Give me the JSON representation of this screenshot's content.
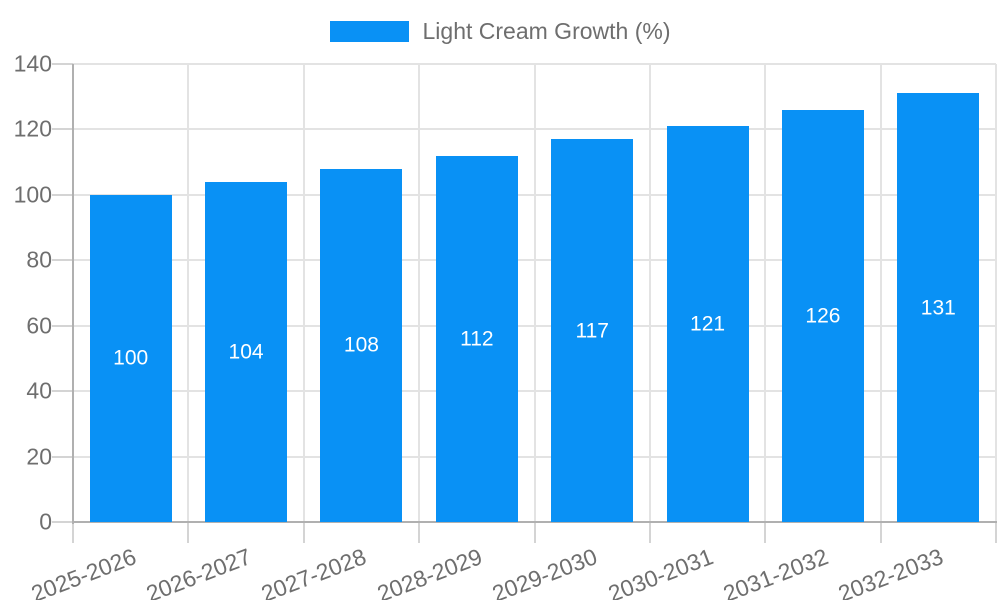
{
  "chart_data": {
    "type": "bar",
    "title": "",
    "legend": "Light Cream Growth (%)",
    "legend_position": "top-center",
    "categories": [
      "2025-2026",
      "2026-2027",
      "2027-2028",
      "2028-2029",
      "2029-2030",
      "2030-2031",
      "2031-2032",
      "2032-2033"
    ],
    "values": [
      100,
      104,
      108,
      112,
      117,
      121,
      126,
      131
    ],
    "xlabel": "",
    "ylabel": "",
    "y_ticks": [
      0,
      20,
      40,
      60,
      80,
      100,
      120,
      140
    ],
    "ylim": [
      0,
      140
    ],
    "grid": true,
    "bar_value_labels_inside": true,
    "colors": {
      "bar": "#0991f5",
      "bar_value_label": "#ffffff",
      "axis_text": "#6e6e6e",
      "grid_line": "#e3e3e3",
      "axis_line": "#b0b0b0",
      "tick_line": "#d4d4d4",
      "background": "#ffffff"
    }
  }
}
